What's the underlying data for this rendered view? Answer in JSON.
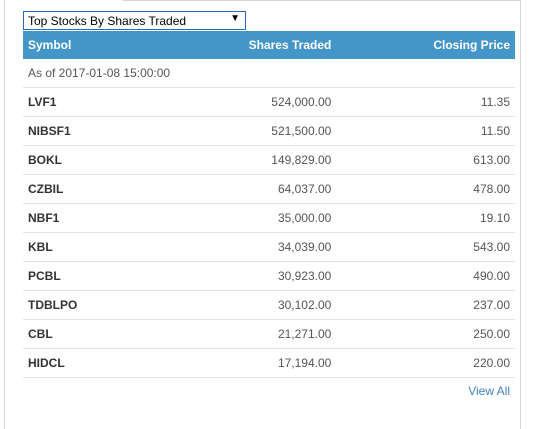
{
  "selector": {
    "value": "Top Stocks By Shares Traded",
    "arrow_icon": "dropdown-arrow-icon"
  },
  "table": {
    "headers": {
      "symbol": "Symbol",
      "shares": "Shares Traded",
      "price": "Closing Price"
    },
    "as_of": "As of 2017-01-08 15:00:00",
    "rows": [
      {
        "symbol": "LVF1",
        "shares": "524,000.00",
        "price": "11.35"
      },
      {
        "symbol": "NIBSF1",
        "shares": "521,500.00",
        "price": "11.50"
      },
      {
        "symbol": "BOKL",
        "shares": "149,829.00",
        "price": "613.00"
      },
      {
        "symbol": "CZBIL",
        "shares": "64,037.00",
        "price": "478.00"
      },
      {
        "symbol": "NBF1",
        "shares": "35,000.00",
        "price": "19.10"
      },
      {
        "symbol": "KBL",
        "shares": "34,039.00",
        "price": "543.00"
      },
      {
        "symbol": "PCBL",
        "shares": "30,923.00",
        "price": "490.00"
      },
      {
        "symbol": "TDBLPO",
        "shares": "30,102.00",
        "price": "237.00"
      },
      {
        "symbol": "CBL",
        "shares": "21,271.00",
        "price": "250.00"
      },
      {
        "symbol": "HIDCL",
        "shares": "17,194.00",
        "price": "220.00"
      }
    ]
  },
  "footer": {
    "view_all": "View All"
  },
  "colors": {
    "header_bg": "#4596c8",
    "link": "#3f7fbf"
  }
}
